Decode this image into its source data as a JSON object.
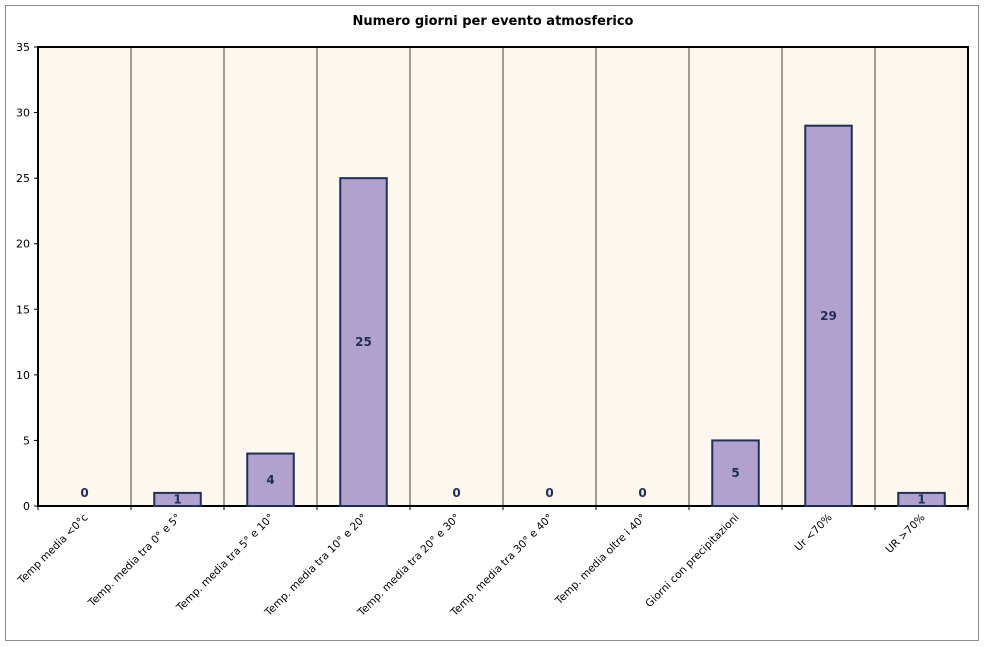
{
  "chart_data": {
    "type": "bar",
    "title": "Numero giorni per evento atmosferico",
    "categories": [
      "Temp media <0°c",
      "Temp. media tra 0° e 5°",
      "Temp. media tra 5° e 10°",
      "Temp. media tra 10° e 20°",
      "Temp. media tra 20° e 30°",
      "Temp. media tra 30° e 40°",
      "Temp. media oltre i 40°",
      "Giorni con precipitazioni",
      "Ur <70%",
      "UR >70%"
    ],
    "values": [
      0,
      1,
      4,
      25,
      0,
      0,
      0,
      5,
      29,
      1
    ],
    "ylim": [
      0,
      35
    ],
    "yticks": [
      0,
      5,
      10,
      15,
      20,
      25,
      30,
      35
    ],
    "grid": "vertical",
    "legend": "none",
    "colors": {
      "bar": "#b0a2cc",
      "bar_border": "#1f2e5a",
      "plot_bg": "#fdf7ee",
      "label": "#1f2e5a"
    }
  }
}
